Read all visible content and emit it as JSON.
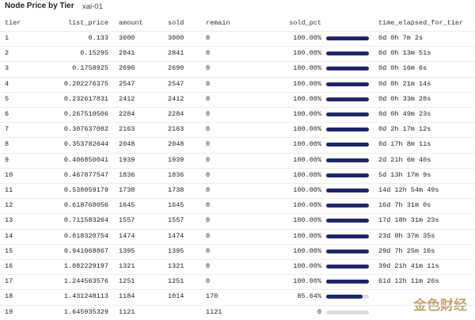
{
  "header": {
    "title": "Node Price by Tier",
    "subtitle": "xai-01"
  },
  "table": {
    "columns": [
      "tier",
      "list_price",
      "amount",
      "sold",
      "remain",
      "sold_pct",
      "time_elapsed_for_tier"
    ],
    "rows": [
      [
        "1",
        "0.133",
        "3000",
        "3000",
        "0",
        "100.00%",
        "0d 0h 7m 2s"
      ],
      [
        "2",
        "0.15295",
        "2841",
        "2841",
        "0",
        "100.00%",
        "0d 0h 13m 51s"
      ],
      [
        "3",
        "0.1758925",
        "2690",
        "2690",
        "0",
        "100.00%",
        "0d 0h 16m 6s"
      ],
      [
        "4",
        "0.202276375",
        "2547",
        "2547",
        "0",
        "100.00%",
        "0d 0h 21m 14s"
      ],
      [
        "5",
        "0.232617831",
        "2412",
        "2412",
        "0",
        "100.00%",
        "0d 0h 33m 28s"
      ],
      [
        "6",
        "0.267510506",
        "2284",
        "2284",
        "0",
        "100.00%",
        "0d 0h 49m 23s"
      ],
      [
        "7",
        "0.307637082",
        "2163",
        "2163",
        "0",
        "100.00%",
        "0d 2h 17m 12s"
      ],
      [
        "8",
        "0.353782644",
        "2048",
        "2048",
        "0",
        "100.00%",
        "0d 17h 8m 11s"
      ],
      [
        "9",
        "0.406850041",
        "1939",
        "1939",
        "0",
        "100.00%",
        "2d 21h 6m 40s"
      ],
      [
        "10",
        "0.467877547",
        "1836",
        "1836",
        "0",
        "100.00%",
        "5d 13h 17m 9s"
      ],
      [
        "11",
        "0.538059179",
        "1738",
        "1738",
        "0",
        "100.00%",
        "14d 12h 54m 49s"
      ],
      [
        "12",
        "0.618768056",
        "1645",
        "1645",
        "0",
        "100.00%",
        "16d 7h 31m 0s"
      ],
      [
        "13",
        "0.711583264",
        "1557",
        "1557",
        "0",
        "100.00%",
        "17d 18h 31m 23s"
      ],
      [
        "14",
        "0.818320754",
        "1474",
        "1474",
        "0",
        "100.00%",
        "23d 0h 37m 35s"
      ],
      [
        "15",
        "0.941068867",
        "1395",
        "1395",
        "0",
        "100.00%",
        "29d 7h 25m 16s"
      ],
      [
        "16",
        "1.082229197",
        "1321",
        "1321",
        "0",
        "100.00%",
        "39d 21h 41m 11s"
      ],
      [
        "17",
        "1.244563576",
        "1251",
        "1251",
        "0",
        "100.00%",
        "61d 12h 11m 26s"
      ],
      [
        "18",
        "1.431248113",
        "1184",
        "1014",
        "170",
        "85.64%",
        null
      ],
      [
        "19",
        "1.645935329",
        "1121",
        null,
        "1121",
        "0",
        null
      ]
    ]
  },
  "watermark": "金色财经"
}
